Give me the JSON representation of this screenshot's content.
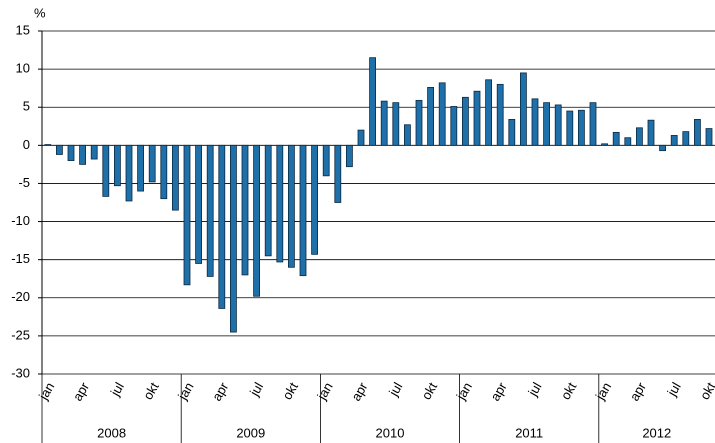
{
  "chart_data": {
    "type": "bar",
    "y_label": "%",
    "categories": [
      "jan",
      null,
      null,
      "apr",
      null,
      null,
      "jul",
      null,
      null,
      "okt",
      null,
      null,
      "jan",
      null,
      null,
      "apr",
      null,
      null,
      "jul",
      null,
      null,
      "okt",
      null,
      null,
      "jan",
      null,
      null,
      "apr",
      null,
      null,
      "jul",
      null,
      null,
      "okt",
      null,
      null,
      "jan",
      null,
      null,
      "apr",
      null,
      null,
      "jul",
      null,
      null,
      "okt",
      null,
      null,
      "jan",
      null,
      null,
      "apr",
      null,
      null,
      "jul",
      null,
      null,
      "okt"
    ],
    "years": [
      "2008",
      "2009",
      "2010",
      "2011",
      "2012"
    ],
    "values": [
      0.1,
      -1.2,
      -2.0,
      -2.5,
      -1.8,
      -6.7,
      -5.3,
      -7.3,
      -6.0,
      -4.8,
      -7.0,
      -8.5,
      -18.3,
      -15.5,
      -17.2,
      -21.4,
      -24.5,
      -17.0,
      -19.8,
      -14.5,
      -15.3,
      -16.0,
      -17.1,
      -14.3,
      -4.0,
      -7.5,
      -2.8,
      2.0,
      11.5,
      5.8,
      5.6,
      2.7,
      5.9,
      7.6,
      8.2,
      5.1,
      6.3,
      7.1,
      8.6,
      8.0,
      3.4,
      9.5,
      6.1,
      5.6,
      5.3,
      4.5,
      4.6,
      5.6,
      0.2,
      1.7,
      1.0,
      2.3,
      3.3,
      -0.7,
      1.3,
      1.8,
      3.4,
      2.2
    ],
    "color": "#1f6fa8",
    "ylim": [
      -30,
      15
    ],
    "yticks": [
      15,
      10,
      5,
      0,
      -5,
      -10,
      -15,
      -20,
      -25,
      -30
    ],
    "grid": true
  }
}
